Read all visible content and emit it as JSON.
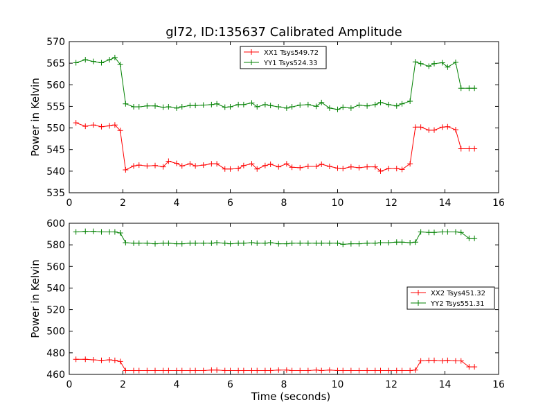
{
  "figure": {
    "title": "gl72, ID:135637 Calibrated Amplitude"
  },
  "chart_data": [
    {
      "type": "line",
      "title": "gl72, ID:135637 Calibrated Amplitude",
      "xlabel": "",
      "ylabel": "Power in Kelvin",
      "xlim": [
        0,
        16
      ],
      "ylim": [
        535,
        570
      ],
      "xticks": [
        0,
        2,
        4,
        6,
        8,
        10,
        12,
        14,
        16
      ],
      "yticks": [
        535,
        540,
        545,
        550,
        555,
        560,
        565,
        570
      ],
      "grid": false,
      "legend_position": "top-center",
      "marker": "+",
      "x": [
        0.25,
        0.6,
        0.9,
        1.2,
        1.5,
        1.7,
        1.9,
        2.1,
        2.4,
        2.6,
        2.9,
        3.2,
        3.5,
        3.7,
        4.0,
        4.2,
        4.5,
        4.7,
        5.0,
        5.3,
        5.5,
        5.8,
        6.0,
        6.3,
        6.5,
        6.8,
        7.0,
        7.3,
        7.5,
        7.8,
        8.1,
        8.3,
        8.6,
        8.9,
        9.2,
        9.4,
        9.7,
        10.0,
        10.2,
        10.5,
        10.8,
        11.1,
        11.4,
        11.6,
        11.9,
        12.2,
        12.4,
        12.7,
        12.9,
        13.1,
        13.4,
        13.6,
        13.9,
        14.1,
        14.4,
        14.6,
        14.9,
        15.1
      ],
      "series": [
        {
          "name": "XX1 Tsys549.72",
          "color": "#ff0000",
          "values": [
            551.2,
            550.4,
            550.7,
            550.3,
            550.5,
            550.7,
            549.4,
            540.3,
            541.2,
            541.4,
            541.2,
            541.3,
            541.0,
            542.3,
            541.8,
            541.2,
            541.7,
            541.2,
            541.4,
            541.7,
            541.7,
            540.5,
            540.5,
            540.6,
            541.3,
            541.7,
            540.5,
            541.3,
            541.6,
            541.0,
            541.7,
            540.9,
            540.8,
            541.1,
            541.1,
            541.6,
            541.1,
            540.7,
            540.6,
            541.0,
            540.8,
            541.0,
            541.0,
            540.0,
            540.6,
            540.6,
            540.4,
            541.7,
            550.2,
            550.2,
            549.5,
            549.5,
            550.2,
            550.3,
            549.6,
            545.2,
            545.2,
            545.2
          ]
        },
        {
          "name": "YY1 Tsys524.33",
          "color": "#008000",
          "values": [
            565.1,
            565.8,
            565.4,
            565.1,
            565.8,
            566.3,
            564.7,
            555.6,
            554.9,
            554.9,
            555.1,
            555.1,
            554.8,
            554.9,
            554.6,
            554.9,
            555.2,
            555.2,
            555.3,
            555.4,
            555.6,
            554.8,
            554.9,
            555.4,
            555.4,
            555.8,
            554.9,
            555.4,
            555.2,
            554.9,
            554.6,
            554.9,
            555.3,
            555.4,
            555.0,
            555.9,
            554.6,
            554.3,
            554.8,
            554.6,
            555.3,
            555.1,
            555.4,
            555.9,
            555.4,
            555.1,
            555.6,
            556.2,
            565.3,
            564.9,
            564.3,
            564.9,
            565.1,
            564.1,
            565.2,
            559.2,
            559.2,
            559.2
          ]
        }
      ]
    },
    {
      "type": "line",
      "title": "",
      "xlabel": "Time (seconds)",
      "ylabel": "Power in Kelvin",
      "xlim": [
        0,
        16
      ],
      "ylim": [
        460,
        600
      ],
      "xticks": [
        0,
        2,
        4,
        6,
        8,
        10,
        12,
        14,
        16
      ],
      "yticks": [
        460,
        480,
        500,
        520,
        540,
        560,
        580,
        600
      ],
      "grid": false,
      "legend_position": "center-right",
      "marker": "+",
      "x": [
        0.25,
        0.6,
        0.9,
        1.2,
        1.5,
        1.7,
        1.9,
        2.1,
        2.4,
        2.6,
        2.9,
        3.2,
        3.5,
        3.7,
        4.0,
        4.2,
        4.5,
        4.7,
        5.0,
        5.3,
        5.5,
        5.8,
        6.0,
        6.3,
        6.5,
        6.8,
        7.0,
        7.3,
        7.5,
        7.8,
        8.1,
        8.3,
        8.6,
        8.9,
        9.2,
        9.4,
        9.7,
        10.0,
        10.2,
        10.5,
        10.8,
        11.1,
        11.4,
        11.6,
        11.9,
        12.2,
        12.4,
        12.7,
        12.9,
        13.1,
        13.4,
        13.6,
        13.9,
        14.1,
        14.4,
        14.6,
        14.9,
        15.1
      ],
      "series": [
        {
          "name": "XX2 Tsys451.32",
          "color": "#ff0000",
          "values": [
            474,
            474,
            473.5,
            473,
            473.5,
            473,
            472,
            463.5,
            463.5,
            463.5,
            463.5,
            463.5,
            463.5,
            463.5,
            463.5,
            463.5,
            463.5,
            463.5,
            463.5,
            464,
            464,
            463.5,
            463.5,
            463.5,
            463.5,
            463.5,
            463.5,
            463.5,
            463.5,
            464,
            464,
            463.5,
            463.5,
            463.5,
            464,
            463.5,
            464,
            463.5,
            463.5,
            463.5,
            463.5,
            463.5,
            463.5,
            463.5,
            463.5,
            463.5,
            463.5,
            463.5,
            464,
            472.5,
            473,
            473,
            472.5,
            473,
            472.5,
            472.5,
            467,
            467
          ]
        },
        {
          "name": "YY2 Tsys551.31",
          "color": "#008000",
          "values": [
            592,
            592.5,
            592.5,
            592,
            592,
            592,
            591,
            582,
            581.5,
            581.5,
            581.5,
            581,
            581.5,
            581.5,
            581,
            581,
            581.5,
            581.5,
            581.5,
            581.5,
            582,
            581.5,
            581,
            581.5,
            581.5,
            582,
            581.5,
            581.5,
            582,
            581,
            581,
            581.5,
            581.5,
            581.5,
            581.5,
            581.5,
            581.5,
            581.5,
            580.5,
            581,
            581,
            581.5,
            581.5,
            582,
            582,
            582.5,
            582.5,
            582,
            582.5,
            592,
            591.5,
            591.5,
            592,
            592,
            592,
            591.5,
            586,
            586
          ]
        }
      ]
    }
  ]
}
